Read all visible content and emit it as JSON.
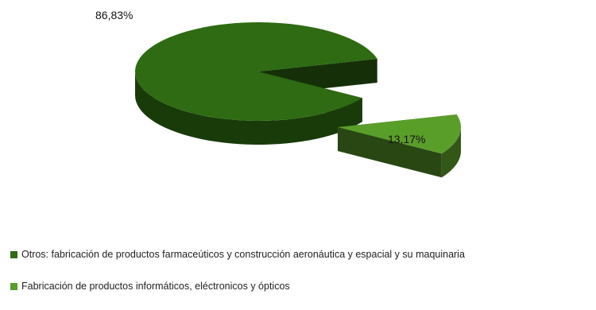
{
  "chart_data": {
    "type": "pie",
    "style": "3d-exploded",
    "categories": [
      "Otros: fabricación de productos farmaceúticos y construcción aeronáutica y espacial y su maquinaria",
      "Fabricación de productos informáticos, eléctronicos y ópticos"
    ],
    "values": [
      86.83,
      13.17
    ],
    "data_labels": [
      "86,83%",
      "13,17%"
    ],
    "colors": [
      "#2e6b12",
      "#5a9e2a"
    ],
    "legend_position": "bottom-left"
  },
  "legend": {
    "items": [
      {
        "label": "Otros: fabricación de productos farmaceúticos y construcción aeronáutica y espacial y su maquinaria",
        "color": "#2e6b12"
      },
      {
        "label": "Fabricación de productos informáticos, eléctronicos y ópticos",
        "color": "#5a9e2a"
      }
    ]
  }
}
